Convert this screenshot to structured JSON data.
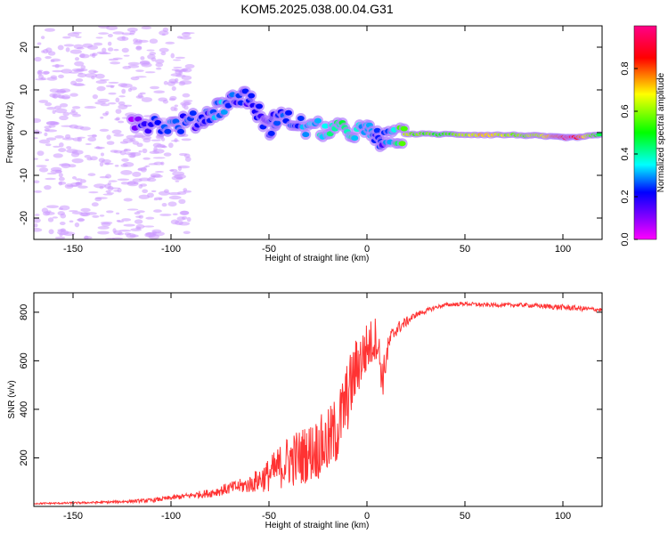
{
  "title": "KOM5.2025.038.00.04.G31",
  "chart_data": [
    {
      "type": "heatmap",
      "xlabel": "Height of straight line (km)",
      "ylabel": "Frequency (Hz)",
      "xlim": [
        -170,
        120
      ],
      "ylim": [
        -25,
        25
      ],
      "xticks": [
        -150,
        -100,
        -50,
        0,
        50,
        100
      ],
      "yticks": [
        -20,
        -10,
        0,
        10,
        20
      ],
      "colorbar": {
        "label": "Normalized spectral amplitude",
        "range": [
          0,
          1
        ],
        "ticks": [
          0.0,
          0.2,
          0.4,
          0.6,
          0.8
        ],
        "colormap": [
          "#ff00ff",
          "#8800ff",
          "#0000ff",
          "#00ffff",
          "#00ff00",
          "#ffff00",
          "#ff0000",
          "#ff0088"
        ]
      },
      "ridge": [
        {
          "x": -120,
          "y": 3,
          "a": 0.12
        },
        {
          "x": -100,
          "y": 1.5,
          "a": 0.25
        },
        {
          "x": -85,
          "y": 3,
          "a": 0.2
        },
        {
          "x": -75,
          "y": 6,
          "a": 0.3
        },
        {
          "x": -62,
          "y": 9,
          "a": 0.18
        },
        {
          "x": -50,
          "y": 1,
          "a": 0.2
        },
        {
          "x": -45,
          "y": 4,
          "a": 0.22
        },
        {
          "x": -30,
          "y": 1,
          "a": 0.3
        },
        {
          "x": -15,
          "y": 0.5,
          "a": 0.45
        },
        {
          "x": 0,
          "y": 0.3,
          "a": 0.3
        },
        {
          "x": 8,
          "y": -2,
          "a": 0.2
        },
        {
          "x": 20,
          "y": -0.3,
          "a": 0.6
        },
        {
          "x": 40,
          "y": -0.4,
          "a": 0.5
        },
        {
          "x": 60,
          "y": -0.5,
          "a": 0.7
        },
        {
          "x": 80,
          "y": -0.6,
          "a": 0.55
        },
        {
          "x": 95,
          "y": -1,
          "a": 0.75
        },
        {
          "x": 105,
          "y": -1.2,
          "a": 0.95
        },
        {
          "x": 120,
          "y": -0.5,
          "a": 0.4
        }
      ]
    },
    {
      "type": "line",
      "xlabel": "Height of straight line (km)",
      "ylabel": "SNR (v/v)",
      "xlim": [
        -170,
        120
      ],
      "ylim": [
        0,
        880
      ],
      "xticks": [
        -150,
        -100,
        -50,
        0,
        50,
        100
      ],
      "yticks": [
        200,
        400,
        600,
        800
      ],
      "series": [
        {
          "color": "#ff3333",
          "x": [
            -170,
            -150,
            -130,
            -110,
            -100,
            -90,
            -80,
            -70,
            -60,
            -50,
            -45,
            -40,
            -35,
            -30,
            -25,
            -20,
            -15,
            -10,
            -5,
            0,
            5,
            8,
            10,
            12,
            15,
            20,
            25,
            30,
            35,
            40,
            50,
            60,
            70,
            80,
            90,
            100,
            110,
            120
          ],
          "y": [
            12,
            14,
            18,
            25,
            35,
            45,
            55,
            75,
            90,
            130,
            160,
            190,
            200,
            220,
            240,
            260,
            320,
            450,
            580,
            650,
            700,
            520,
            620,
            690,
            730,
            760,
            790,
            805,
            820,
            830,
            835,
            830,
            830,
            830,
            825,
            820,
            815,
            810
          ],
          "noise": [
            3,
            4,
            5,
            8,
            10,
            12,
            18,
            25,
            35,
            70,
            90,
            110,
            120,
            120,
            130,
            140,
            150,
            150,
            130,
            110,
            90,
            80,
            60,
            40,
            30,
            20,
            12,
            10,
            8,
            8,
            8,
            8,
            8,
            8,
            10,
            12,
            10,
            8
          ]
        }
      ]
    }
  ]
}
